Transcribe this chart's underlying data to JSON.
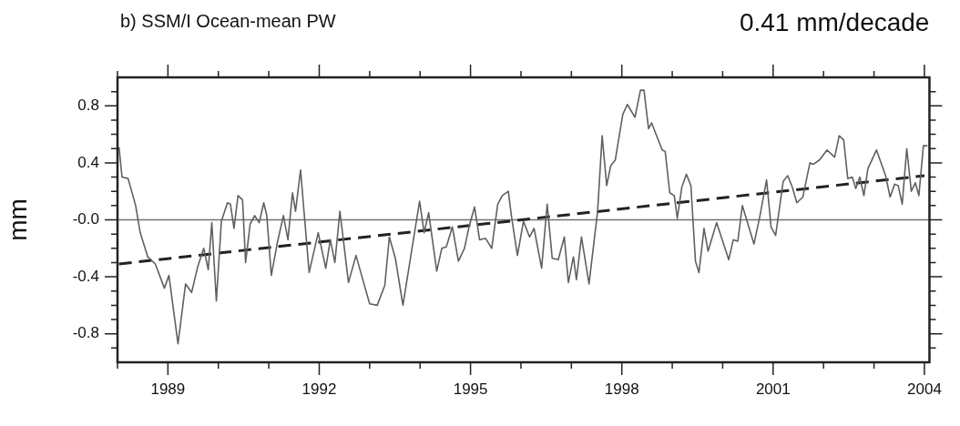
{
  "chart_data": {
    "type": "line",
    "title": "b) SSM/I Ocean-mean PW",
    "ylabel": "mm",
    "annotations": [
      "0.41 mm/decade"
    ],
    "xlim": [
      1988.0,
      2004.1
    ],
    "xticks": [
      {
        "value": 1988,
        "label": null
      },
      1989,
      {
        "value": 1990,
        "label": null
      },
      {
        "value": 1991,
        "label": null
      },
      1992,
      {
        "value": 1993,
        "label": null
      },
      {
        "value": 1994,
        "label": null
      },
      1995,
      {
        "value": 1996,
        "label": null
      },
      {
        "value": 1997,
        "label": null
      },
      1998,
      {
        "value": 1999,
        "label": null
      },
      {
        "value": 2000,
        "label": null
      },
      2001,
      {
        "value": 2002,
        "label": null
      },
      {
        "value": 2003,
        "label": null
      },
      2004
    ],
    "ylim": [
      -1,
      1
    ],
    "yticks": [
      {
        "value": -0.9,
        "label": null
      },
      -0.8,
      {
        "value": -0.7,
        "label": null
      },
      {
        "value": -0.6,
        "label": null
      },
      {
        "value": -0.5,
        "label": null
      },
      -0.4,
      {
        "value": -0.3,
        "label": null
      },
      {
        "value": -0.2,
        "label": null
      },
      {
        "value": -0.1,
        "label": null
      },
      {
        "value": 0,
        "label": "-0.0"
      },
      {
        "value": 0.1,
        "label": null
      },
      {
        "value": 0.2,
        "label": null
      },
      {
        "value": 0.3,
        "label": null
      },
      0.4,
      {
        "value": 0.5,
        "label": null
      },
      {
        "value": 0.6,
        "label": null
      },
      {
        "value": 0.7,
        "label": null
      },
      0.8,
      {
        "value": 0.9,
        "label": null
      }
    ],
    "grid": false,
    "legend": false,
    "marker": "none",
    "ref_lines": [
      {
        "axis": "y",
        "value": 0,
        "color": "#707070",
        "line_style": "solid"
      }
    ],
    "series": [
      {
        "color": "#606060",
        "line_style": "solid",
        "x": [
          1988.03,
          1988.09,
          1988.21,
          1988.36,
          1988.45,
          1988.6,
          1988.75,
          1988.93,
          1989.02,
          1989.2,
          1989.35,
          1989.47,
          1989.59,
          1989.71,
          1989.8,
          1989.87,
          1989.96,
          1990.06,
          1990.18,
          1990.24,
          1990.31,
          1990.39,
          1990.48,
          1990.54,
          1990.63,
          1990.72,
          1990.81,
          1990.9,
          1990.96,
          1991.05,
          1991.17,
          1991.29,
          1991.38,
          1991.47,
          1991.53,
          1991.63,
          1991.8,
          1991.98,
          1992.13,
          1992.22,
          1992.31,
          1992.41,
          1992.58,
          1992.73,
          1992.88,
          1993.0,
          1993.15,
          1993.3,
          1993.39,
          1993.51,
          1993.66,
          1993.84,
          1993.99,
          1994.08,
          1994.17,
          1994.33,
          1994.43,
          1994.52,
          1994.64,
          1994.76,
          1994.88,
          1994.97,
          1995.08,
          1995.18,
          1995.3,
          1995.42,
          1995.54,
          1995.63,
          1995.75,
          1995.81,
          1995.93,
          1996.05,
          1996.17,
          1996.26,
          1996.41,
          1996.52,
          1996.62,
          1996.74,
          1996.86,
          1996.94,
          1997.04,
          1997.1,
          1997.2,
          1997.35,
          1997.52,
          1997.61,
          1997.7,
          1997.78,
          1997.87,
          1998.02,
          1998.11,
          1998.26,
          1998.37,
          1998.44,
          1998.53,
          1998.59,
          1998.8,
          1998.86,
          1998.95,
          1999.04,
          1999.1,
          1999.19,
          1999.28,
          1999.37,
          1999.46,
          1999.53,
          1999.63,
          1999.71,
          1999.88,
          2000.12,
          2000.21,
          2000.3,
          2000.39,
          2000.62,
          2000.74,
          2000.87,
          2000.96,
          2001.05,
          2001.2,
          2001.29,
          2001.38,
          2001.47,
          2001.59,
          2001.73,
          2001.8,
          2001.92,
          2002.07,
          2002.22,
          2002.31,
          2002.4,
          2002.48,
          2002.57,
          2002.64,
          2002.72,
          2002.8,
          2002.88,
          2003.05,
          2003.23,
          2003.32,
          2003.41,
          2003.48,
          2003.56,
          2003.65,
          2003.74,
          2003.82,
          2003.89,
          2003.98,
          2004.06
        ],
        "values": [
          0.51,
          0.3,
          0.29,
          0.1,
          -0.09,
          -0.26,
          -0.31,
          -0.48,
          -0.39,
          -0.87,
          -0.45,
          -0.51,
          -0.33,
          -0.2,
          -0.35,
          -0.02,
          -0.57,
          -0.01,
          0.12,
          0.11,
          -0.06,
          0.17,
          0.14,
          -0.3,
          -0.03,
          0.03,
          -0.02,
          0.12,
          0.03,
          -0.39,
          -0.16,
          0.03,
          -0.14,
          0.19,
          0.06,
          0.35,
          -0.37,
          -0.09,
          -0.34,
          -0.14,
          -0.3,
          0.06,
          -0.44,
          -0.25,
          -0.44,
          -0.59,
          -0.6,
          -0.46,
          -0.12,
          -0.27,
          -0.6,
          -0.2,
          0.13,
          -0.09,
          0.05,
          -0.36,
          -0.2,
          -0.19,
          -0.05,
          -0.29,
          -0.2,
          -0.05,
          0.09,
          -0.14,
          -0.13,
          -0.2,
          0.11,
          0.17,
          0.2,
          0.03,
          -0.25,
          -0.01,
          -0.12,
          -0.06,
          -0.34,
          0.11,
          -0.27,
          -0.28,
          -0.12,
          -0.44,
          -0.26,
          -0.42,
          -0.12,
          -0.45,
          0.06,
          0.59,
          0.24,
          0.38,
          0.42,
          0.74,
          0.81,
          0.72,
          0.91,
          0.91,
          0.64,
          0.68,
          0.49,
          0.48,
          0.19,
          0.17,
          0.01,
          0.23,
          0.32,
          0.24,
          -0.29,
          -0.37,
          -0.06,
          -0.22,
          -0.02,
          -0.28,
          -0.14,
          -0.15,
          0.1,
          -0.17,
          0.03,
          0.28,
          -0.05,
          -0.11,
          0.27,
          0.31,
          0.23,
          0.12,
          0.16,
          0.4,
          0.39,
          0.42,
          0.49,
          0.44,
          0.59,
          0.56,
          0.29,
          0.3,
          0.22,
          0.3,
          0.17,
          0.36,
          0.49,
          0.31,
          0.16,
          0.25,
          0.24,
          0.11,
          0.5,
          0.2,
          0.26,
          0.17,
          0.52,
          0.52
        ]
      },
      {
        "color": "#222222",
        "line_style": "dashed",
        "x": [
          1988.03,
          2004.0
        ],
        "values": [
          -0.31,
          0.31
        ]
      }
    ]
  }
}
